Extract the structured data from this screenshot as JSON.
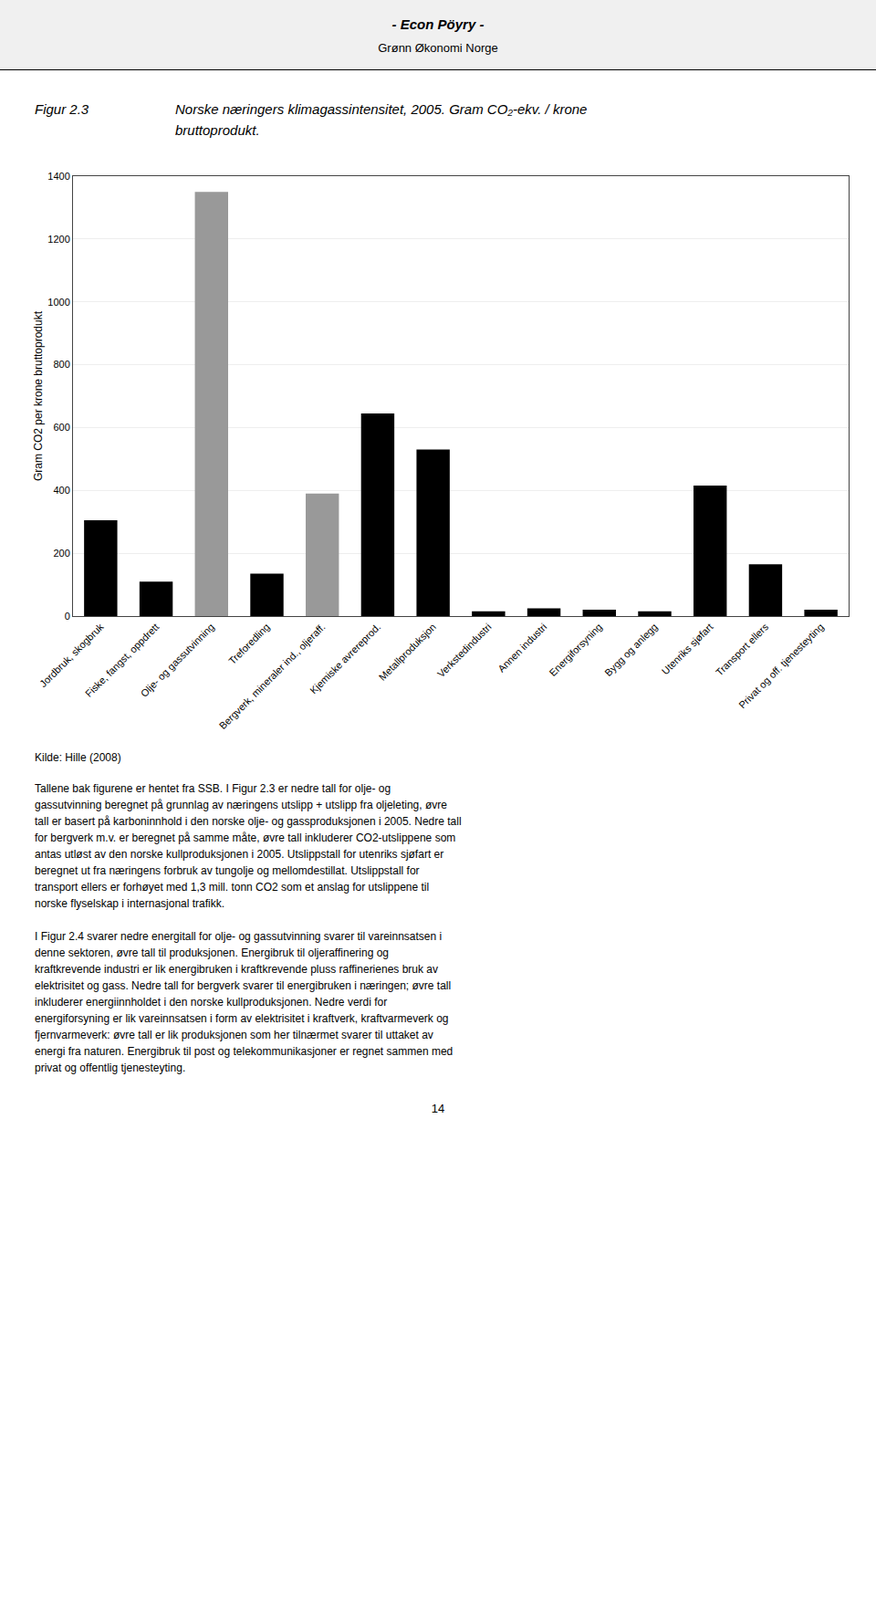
{
  "chart_data": {
    "type": "bar",
    "header": [
      "- Econ Pöyry -",
      "Grønn Økonomi Norge"
    ],
    "figure_label": "Figur 2.3",
    "title": [
      "Norske næringers klimagassintensitet, 2005. Gram CO₂-ekv. / krone",
      "bruttoprodukt."
    ],
    "ylabel": "Gram CO2 per krone bruttoprodukt",
    "categories": [
      "Jordbruk, skogbruk",
      "Fiske, fangst, oppdrett",
      "Olje- og gassutvinning",
      "Treforedling",
      "Bergverk, mineraler ind., oljeraff.",
      "Kjemiske avrereprod.",
      "Metallproduksjon",
      "Verkstedindustri",
      "Annen industri",
      "Energiforsyning",
      "Bygg og anlegg",
      "Utenriks sjøfart",
      "Transport ellers",
      "Privat og off. tjenesteyting"
    ],
    "values": [
      305,
      110,
      1350,
      135,
      390,
      645,
      530,
      15,
      25,
      20,
      15,
      415,
      165,
      20
    ],
    "colors": [
      "#000000",
      "#000000",
      "#999999",
      "#000000",
      "#999999",
      "#000000",
      "#000000",
      "#000000",
      "#000000",
      "#000000",
      "#000000",
      "#000000",
      "#000000",
      "#000000"
    ],
    "ylim": [
      0,
      1400
    ],
    "yticks": [
      0,
      200,
      400,
      600,
      800,
      1000,
      1200,
      1400
    ],
    "grid": true,
    "source": "Kilde: Hille (2008)",
    "body_text": "Tallene bak figurene er hentet fra SSB. I Figur 2.3 er nedre tall for olje- og\ngassutvinning beregnet på grunnlag av næringens utslipp + utslipp fra oljeleting, øvre\ntall er basert på karboninnhold i den norske olje- og gassproduksjonen i 2005. Nedre tall\nfor bergverk m.v. er beregnet på samme måte, øvre tall inkluderer CO2-utslippene som\nantas utløst av den norske kullproduksjonen i 2005. Utslippstall for utenriks sjøfart er\nberegnet ut fra næringens forbruk av tungolje og mellomdestillat. Utslippstall for\ntransport ellers er forhøyet med 1,3 mill. tonn CO2 som et anslag for utslippene til\nnorske flyselskap i internasjonal trafikk.\n\nI Figur 2.4 svarer nedre energitall for olje- og gassutvinning svarer til vareinnsatsen i\ndenne sektoren, øvre tall til produksjonen. Energibruk til oljeraffinering og\nkraftkrevende industri er lik energibruken i kraftkrevende pluss raffinerienes bruk av\nelektrisitet og gass. Nedre tall for bergverk svarer til energibruken i næringen; øvre tall\ninkluderer energiinnholdet i den norske kullproduksjonen. Nedre verdi for\nenergiforsyning er lik vareinnsatsen i form av elektrisitet i kraftverk, kraftvarmeverk og\nfjernvarmeverk: øvre tall er lik produksjonen som her tilnærmet svarer til uttaket av\nenergi fra naturen. Energibruk til post og telekommunikasjoner er regnet sammen med\nprivat og offentlig tjenesteyting.",
    "page_number": "14"
  }
}
